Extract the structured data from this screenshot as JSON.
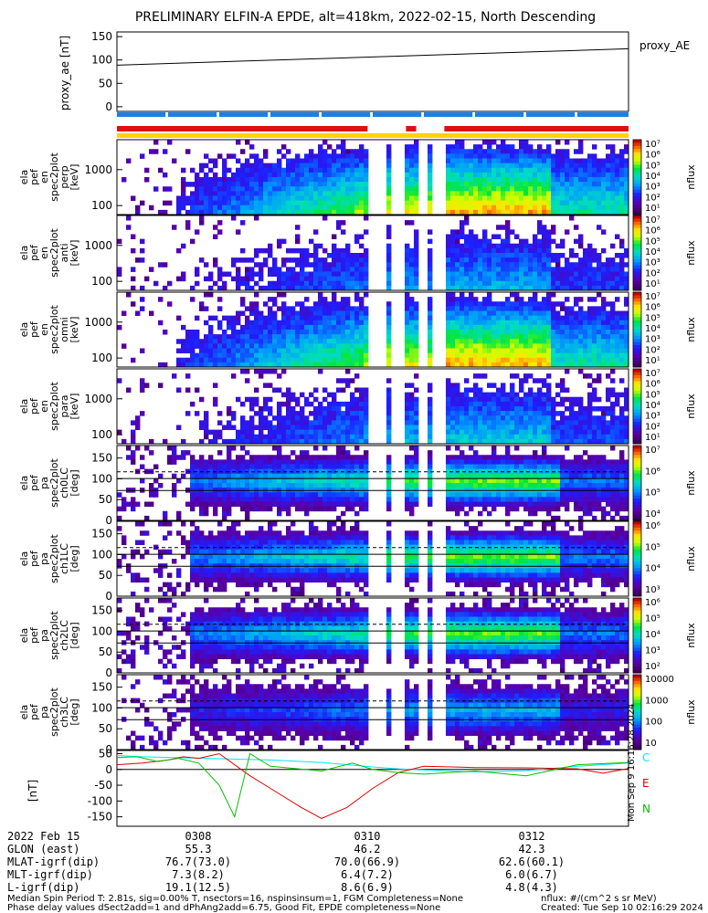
{
  "title": "PRELIMINARY ELFIN-A EPDE, alt=418km, 2022-02-15, North Descending",
  "chart_data": [
    {
      "type": "line",
      "name": "proxy_ae_panel",
      "ylabel": "proxy_ae\n[nT]",
      "legend": "proxy_AE",
      "ylim": [
        -10,
        160
      ],
      "y_ticks": [
        "150",
        "100",
        "50",
        "0"
      ],
      "y_tick_values": [
        150,
        100,
        50,
        0
      ],
      "x": [
        "start",
        "end"
      ],
      "values": [
        89,
        124
      ]
    },
    {
      "type": "heatmap",
      "name": "energy_spectrum_perp",
      "ylabel_lines": [
        "ela",
        "pef",
        "en",
        "spec2plot",
        "perp",
        "[keV]"
      ],
      "y_ticks": [
        "1000",
        "100"
      ],
      "ylim_log": [
        60,
        6000
      ],
      "z_ticks": [
        "10⁷",
        "10⁶",
        "10⁵",
        "10⁴",
        "10³",
        "10²",
        "10¹"
      ],
      "z_label": "nflux"
    },
    {
      "type": "heatmap",
      "name": "energy_spectrum_anti",
      "ylabel_lines": [
        "ela",
        "pef",
        "en",
        "spec2plot",
        "anti",
        "[keV]"
      ],
      "y_ticks": [
        "1000",
        "100"
      ],
      "ylim_log": [
        60,
        6000
      ],
      "z_ticks": [
        "10⁷",
        "10⁶",
        "10⁵",
        "10⁴",
        "10³",
        "10²",
        "10¹"
      ],
      "z_label": "nflux"
    },
    {
      "type": "heatmap",
      "name": "energy_spectrum_omni",
      "ylabel_lines": [
        "ela",
        "pef",
        "en",
        "spec2plot",
        "omni",
        "[keV]"
      ],
      "y_ticks": [
        "1000",
        "100"
      ],
      "ylim_log": [
        60,
        6000
      ],
      "z_ticks": [
        "10⁷",
        "10⁶",
        "10⁵",
        "10⁴",
        "10³",
        "10²",
        "10¹"
      ],
      "z_label": "nflux"
    },
    {
      "type": "heatmap",
      "name": "energy_spectrum_para",
      "ylabel_lines": [
        "ela",
        "pef",
        "en",
        "spec2plot",
        "para",
        "[keV]"
      ],
      "y_ticks": [
        "1000",
        "100"
      ],
      "ylim_log": [
        60,
        6000
      ],
      "z_ticks": [
        "10⁷",
        "10⁶",
        "10⁵",
        "10⁴",
        "10³",
        "10²",
        "10¹"
      ],
      "z_label": "nflux"
    },
    {
      "type": "heatmap",
      "name": "pitch_angle_ch0",
      "ylabel_lines": [
        "ela",
        "pef",
        "pa",
        "spec2plot",
        "ch0LC",
        "[deg]"
      ],
      "y_ticks": [
        "150",
        "100",
        "50",
        "0"
      ],
      "ylim": [
        0,
        180
      ],
      "z_ticks": [
        "10⁷",
        "10⁶",
        "10⁵",
        "10⁴"
      ],
      "z_label": "nflux"
    },
    {
      "type": "heatmap",
      "name": "pitch_angle_ch1",
      "ylabel_lines": [
        "ela",
        "pef",
        "pa",
        "spec2plot",
        "ch1LC",
        "[deg]"
      ],
      "y_ticks": [
        "150",
        "100",
        "50",
        "0"
      ],
      "ylim": [
        0,
        180
      ],
      "z_ticks": [
        "10⁶",
        "10⁵",
        "10⁴",
        "10³"
      ],
      "z_label": "nflux"
    },
    {
      "type": "heatmap",
      "name": "pitch_angle_ch2",
      "ylabel_lines": [
        "ela",
        "pef",
        "pa",
        "spec2plot",
        "ch2LC",
        "[deg]"
      ],
      "y_ticks": [
        "150",
        "100",
        "50",
        "0"
      ],
      "ylim": [
        0,
        180
      ],
      "z_ticks": [
        "10⁶",
        "10⁵",
        "10⁴",
        "10³",
        "10²"
      ],
      "z_label": "nflux"
    },
    {
      "type": "heatmap",
      "name": "pitch_angle_ch3",
      "ylabel_lines": [
        "ela",
        "pef",
        "pa",
        "spec2plot",
        "ch3LC",
        "[deg]"
      ],
      "y_ticks": [
        "150",
        "100",
        "50",
        "0"
      ],
      "ylim": [
        0,
        180
      ],
      "z_ticks": [
        "10000",
        "1000",
        "100",
        "10"
      ],
      "z_label": "nflux"
    },
    {
      "type": "line",
      "name": "magnetic_field_panel",
      "ylabel": "[nT]",
      "ylim": [
        -180,
        60
      ],
      "y_ticks": [
        "50",
        "0",
        "-50",
        "-100",
        "-150"
      ],
      "y_tick_values": [
        50,
        0,
        -50,
        -100,
        -150
      ],
      "legend": [
        "C",
        "E",
        "N"
      ],
      "legend_colors": [
        "#00e5ff",
        "#e00000",
        "#00c000"
      ],
      "series": [
        {
          "name": "C",
          "color": "#00e5ff",
          "x": [
            0,
            0.05,
            0.1,
            0.15,
            0.2,
            0.3,
            0.4,
            0.5,
            0.55,
            0.6,
            0.65,
            0.7,
            0.8,
            0.9,
            1.0
          ],
          "values": [
            44,
            40,
            38,
            36,
            34,
            30,
            22,
            8,
            2,
            -2,
            -5,
            -8,
            -4,
            10,
            20
          ]
        },
        {
          "name": "E",
          "color": "#e00000",
          "x": [
            0,
            0.05,
            0.1,
            0.13,
            0.16,
            0.2,
            0.26,
            0.3,
            0.36,
            0.4,
            0.45,
            0.5,
            0.55,
            0.6,
            0.7,
            0.8,
            0.9,
            0.95,
            1.0
          ],
          "values": [
            15,
            20,
            30,
            40,
            35,
            50,
            -20,
            -60,
            -120,
            -155,
            -120,
            -60,
            -10,
            10,
            6,
            5,
            2,
            -12,
            3
          ]
        },
        {
          "name": "N",
          "color": "#00c000",
          "x": [
            0,
            0.04,
            0.08,
            0.12,
            0.16,
            0.2,
            0.23,
            0.26,
            0.3,
            0.4,
            0.46,
            0.5,
            0.55,
            0.6,
            0.7,
            0.8,
            0.9,
            1.0
          ],
          "values": [
            38,
            40,
            25,
            35,
            20,
            -50,
            -150,
            50,
            10,
            -5,
            20,
            0,
            -10,
            -15,
            -5,
            -20,
            15,
            22
          ]
        }
      ]
    }
  ],
  "bars": {
    "blue_segments": [
      [
        0,
        0.095
      ],
      [
        0.1,
        0.195
      ],
      [
        0.2,
        0.295
      ],
      [
        0.3,
        0.395
      ],
      [
        0.4,
        0.495
      ],
      [
        0.5,
        0.595
      ],
      [
        0.6,
        0.695
      ],
      [
        0.7,
        0.795
      ],
      [
        0.8,
        0.895
      ],
      [
        0.9,
        1.0
      ]
    ],
    "red_segments": [
      [
        0,
        0.49
      ],
      [
        0.565,
        0.585
      ],
      [
        0.64,
        1.0
      ]
    ],
    "yellow_segments": [
      [
        0,
        1.0
      ]
    ]
  },
  "time_axis": {
    "labels": [
      "0308",
      "0310",
      "0312"
    ],
    "positions": [
      0.16,
      0.49,
      0.81
    ]
  },
  "footer": {
    "rows": [
      {
        "label": "2022 Feb 15",
        "v1": "0308",
        "v2": "0310",
        "v3": "0312"
      },
      {
        "label": "GLON (east)",
        "v1": "55.3",
        "v2": "46.2",
        "v3": "42.3"
      },
      {
        "label": "MLAT-igrf(dip)",
        "v1": "76.7(73.0)",
        "v2": "70.0(66.9)",
        "v3": "62.6(60.1)"
      },
      {
        "label": "MLT-igrf(dip)",
        "v1": "7.3(8.2)",
        "v2": "6.4(7.2)",
        "v3": "6.0(6.7)"
      },
      {
        "label": "L-igrf(dip)",
        "v1": "19.1(12.5)",
        "v2": "8.6(6.9)",
        "v3": "4.8(4.3)"
      }
    ],
    "note1": "Median Spin Period T: 2.81s, sig=0.00% T, nsectors=16, nspinsinsum=1, FGM Completeness=None",
    "note2": "Phase delay values dSect2add=1 and dPhAng2add=6.75, Good Fit, EPDE completeness=None",
    "units": "nflux: #/(cm^2 s sr MeV)",
    "created": "Created: Tue Sep 10 02:16:29 2024",
    "vertical_stamp": "Mon Sep 9 16:16:28 2024"
  }
}
